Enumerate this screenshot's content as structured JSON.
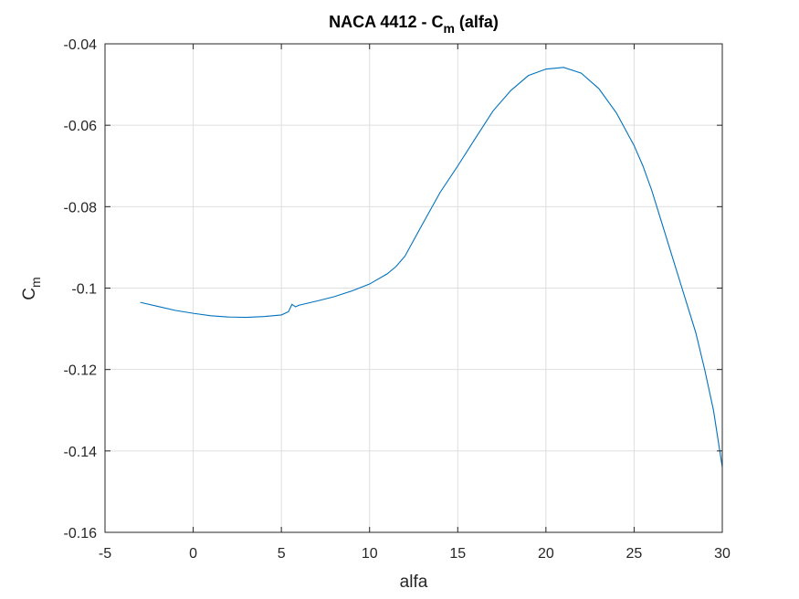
{
  "chart_data": {
    "type": "line",
    "title_main": "NACA 4412 - C",
    "title_sub": "m",
    "title_tail": " (alfa)",
    "xlabel": "alfa",
    "ylabel_main": "C",
    "ylabel_sub": "m",
    "xlim": [
      -5,
      30
    ],
    "ylim": [
      -0.16,
      -0.04
    ],
    "xticks": [
      -5,
      0,
      5,
      10,
      15,
      20,
      25,
      30
    ],
    "xtick_labels": [
      "-5",
      "0",
      "5",
      "10",
      "15",
      "20",
      "25",
      "30"
    ],
    "yticks": [
      -0.16,
      -0.14,
      -0.12,
      -0.1,
      -0.08,
      -0.06,
      -0.04
    ],
    "ytick_labels": [
      "-0.16",
      "-0.14",
      "-0.12",
      "-0.1",
      "-0.08",
      "-0.06",
      "-0.04"
    ],
    "grid": true,
    "line_color": "#0072bd",
    "series": [
      {
        "x": [
          -3,
          -2,
          -1,
          0,
          1,
          2,
          3,
          4,
          5,
          5.4,
          5.6,
          5.8,
          6,
          7,
          8,
          9,
          10,
          11,
          11.5,
          12,
          13,
          14,
          15,
          16,
          17,
          18,
          19,
          20,
          21,
          22,
          23,
          24,
          25,
          25.5,
          26,
          26.5,
          27,
          27.5,
          28,
          28.5,
          29,
          29.5,
          30
        ],
        "y": [
          -0.1035,
          -0.1045,
          -0.1055,
          -0.1062,
          -0.1068,
          -0.1071,
          -0.1072,
          -0.107,
          -0.1066,
          -0.1058,
          -0.104,
          -0.1046,
          -0.1042,
          -0.1032,
          -0.1021,
          -0.1007,
          -0.099,
          -0.0965,
          -0.0947,
          -0.0922,
          -0.0843,
          -0.0765,
          -0.07,
          -0.0632,
          -0.0565,
          -0.0515,
          -0.0478,
          -0.0462,
          -0.0458,
          -0.0472,
          -0.051,
          -0.057,
          -0.065,
          -0.07,
          -0.076,
          -0.083,
          -0.09,
          -0.097,
          -0.104,
          -0.111,
          -0.12,
          -0.13,
          -0.144
        ]
      }
    ]
  }
}
